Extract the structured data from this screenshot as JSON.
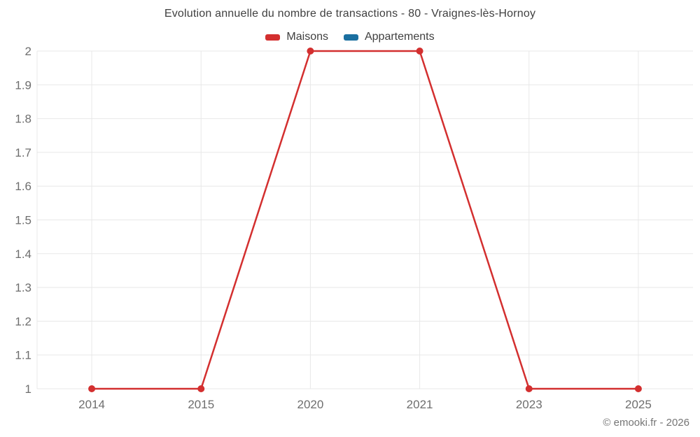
{
  "title": "Evolution annuelle du nombre de transactions - 80 - Vraignes-lès-Hornoy",
  "footer": "© emooki.fr - 2026",
  "legend": [
    {
      "label": "Maisons",
      "color": "#d32f2f",
      "swatch_icon": "red-line-swatch-icon"
    },
    {
      "label": "Appartements",
      "color": "#1a6fa0",
      "swatch_icon": "blue-line-swatch-icon"
    }
  ],
  "colors": {
    "grid": "#e8e8e8",
    "tick_text": "#6e6e6e",
    "title_text": "#404040",
    "footer_text": "#757575",
    "background": "#ffffff"
  },
  "chart_data": {
    "type": "line",
    "title": "Evolution annuelle du nombre de transactions - 80 - Vraignes-lès-Hornoy",
    "categories": [
      "2014",
      "2015",
      "2020",
      "2021",
      "2023",
      "2025"
    ],
    "series": [
      {
        "name": "Maisons",
        "color": "#d32f2f",
        "values": [
          1,
          1,
          2,
          2,
          1,
          1
        ]
      },
      {
        "name": "Appartements",
        "color": "#1a6fa0",
        "values": []
      }
    ],
    "xlabel": "",
    "ylabel": "",
    "ylim": [
      1,
      2
    ],
    "yticks": [
      "1",
      "1.1",
      "1.2",
      "1.3",
      "1.4",
      "1.5",
      "1.6",
      "1.7",
      "1.8",
      "1.9",
      "2"
    ],
    "grid": true,
    "legend_position": "top",
    "annotations": []
  }
}
